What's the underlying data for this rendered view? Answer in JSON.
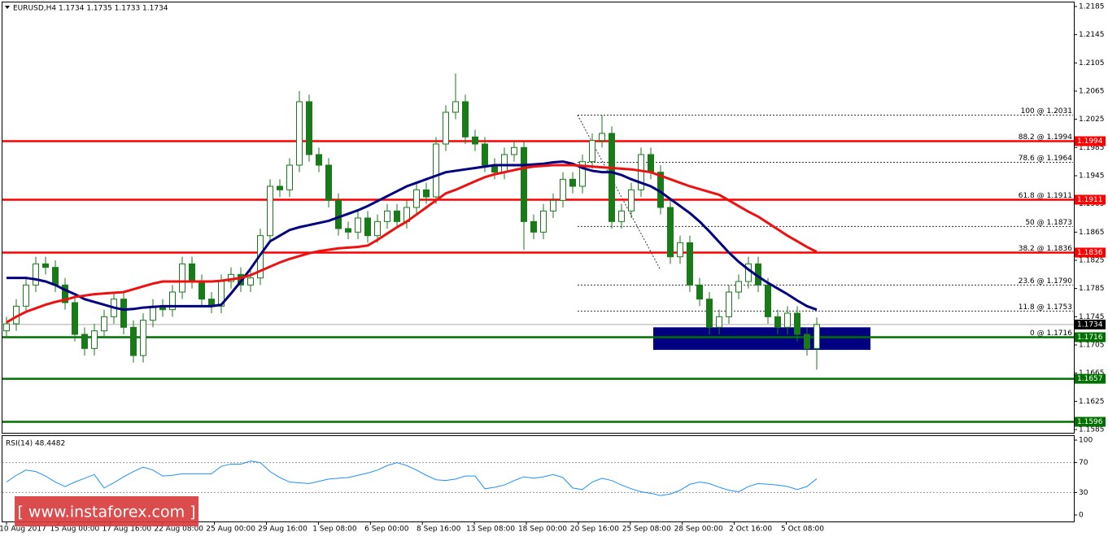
{
  "chart_data": {
    "type": "candlestick",
    "header": "EURUSD,H4  1.1734 1.1735 1.1733 1.1734",
    "watermark": "[ www.instaforex.com ]",
    "ylim": [
      1.1585,
      1.2185
    ],
    "yticks": [
      1.2185,
      1.2145,
      1.2105,
      1.2065,
      1.2025,
      1.1985,
      1.1945,
      1.1905,
      1.1865,
      1.1825,
      1.1785,
      1.1745,
      1.1705,
      1.1665,
      1.1625,
      1.1585
    ],
    "x_labels": [
      "10 Aug 2017",
      "15 Aug 00:00",
      "17 Aug 16:00",
      "22 Aug 08:00",
      "25 Aug 00:00",
      "29 Aug 16:00",
      "1 Sep 08:00",
      "6 Sep 00:00",
      "8 Sep 16:00",
      "13 Sep 08:00",
      "18 Sep 00:00",
      "20 Sep 16:00",
      "25 Sep 08:00",
      "28 Sep 00:00",
      "2 Oct 16:00",
      "5 Oct 08:00"
    ],
    "bull_color": "#ffffff",
    "bear_color": "#1a7a1a",
    "wick_color": "#1a7a1a",
    "candles": {
      "open": [
        1.1725,
        1.1735,
        1.176,
        1.179,
        1.182,
        1.1815,
        1.179,
        1.1765,
        1.172,
        1.17,
        1.1725,
        1.1745,
        1.177,
        1.173,
        1.169,
        1.174,
        1.176,
        1.1755,
        1.178,
        1.182,
        1.1795,
        1.177,
        1.176,
        1.1795,
        1.1805,
        1.179,
        1.18,
        1.186,
        1.193,
        1.1925,
        1.196,
        1.205,
        1.1975,
        1.196,
        1.191,
        1.187,
        1.1865,
        1.1885,
        1.186,
        1.188,
        1.1895,
        1.188,
        1.19,
        1.1925,
        1.1915,
        1.199,
        1.2035,
        1.205,
        1.2,
        1.199,
        1.196,
        1.195,
        1.1975,
        1.1985,
        1.188,
        1.1865,
        1.1895,
        1.191,
        1.194,
        1.193,
        1.1965,
        1.1995,
        1.2005,
        1.188,
        1.1895,
        1.1925,
        1.1975,
        1.195,
        1.19,
        1.183,
        1.185,
        1.179,
        1.177,
        1.173,
        1.1745,
        1.178,
        1.1795,
        1.182,
        1.179,
        1.1745,
        1.173,
        1.175,
        1.172,
        1.17
      ],
      "high": [
        1.1745,
        1.177,
        1.18,
        1.183,
        1.183,
        1.1825,
        1.18,
        1.1775,
        1.173,
        1.1735,
        1.1755,
        1.178,
        1.178,
        1.174,
        1.175,
        1.177,
        1.177,
        1.179,
        1.183,
        1.183,
        1.1805,
        1.178,
        1.1805,
        1.1815,
        1.1815,
        1.181,
        1.187,
        1.194,
        1.194,
        1.197,
        1.2065,
        1.206,
        1.1985,
        1.197,
        1.192,
        1.188,
        1.1895,
        1.1895,
        1.189,
        1.1905,
        1.1905,
        1.191,
        1.1935,
        1.1935,
        1.2,
        1.2045,
        1.209,
        1.206,
        1.201,
        1.2,
        1.197,
        1.1985,
        1.1995,
        1.1995,
        1.189,
        1.1905,
        1.192,
        1.195,
        1.195,
        1.1975,
        1.2005,
        1.2031,
        1.2015,
        1.1905,
        1.1935,
        1.1985,
        1.1985,
        1.196,
        1.191,
        1.186,
        1.186,
        1.18,
        1.178,
        1.1755,
        1.179,
        1.1805,
        1.183,
        1.183,
        1.18,
        1.1755,
        1.176,
        1.176,
        1.173,
        1.1744
      ],
      "low": [
        1.1715,
        1.1725,
        1.175,
        1.178,
        1.1805,
        1.178,
        1.1755,
        1.171,
        1.169,
        1.169,
        1.1715,
        1.1735,
        1.172,
        1.168,
        1.168,
        1.173,
        1.1745,
        1.1745,
        1.177,
        1.1785,
        1.176,
        1.175,
        1.175,
        1.1785,
        1.178,
        1.178,
        1.179,
        1.185,
        1.1915,
        1.1915,
        1.195,
        1.1965,
        1.195,
        1.19,
        1.186,
        1.1855,
        1.1855,
        1.185,
        1.185,
        1.187,
        1.187,
        1.187,
        1.189,
        1.1905,
        1.1905,
        1.198,
        1.2025,
        1.199,
        1.198,
        1.195,
        1.194,
        1.194,
        1.1965,
        1.184,
        1.1855,
        1.1855,
        1.1885,
        1.19,
        1.192,
        1.192,
        1.1955,
        1.1985,
        1.187,
        1.187,
        1.1885,
        1.1915,
        1.194,
        1.189,
        1.182,
        1.182,
        1.178,
        1.176,
        1.172,
        1.172,
        1.1735,
        1.177,
        1.1785,
        1.178,
        1.1735,
        1.172,
        1.172,
        1.171,
        1.169,
        1.167
      ],
      "close": [
        1.1735,
        1.176,
        1.179,
        1.182,
        1.1815,
        1.179,
        1.1765,
        1.172,
        1.17,
        1.1725,
        1.1745,
        1.177,
        1.173,
        1.169,
        1.174,
        1.176,
        1.1755,
        1.178,
        1.182,
        1.1795,
        1.177,
        1.176,
        1.1795,
        1.1805,
        1.179,
        1.18,
        1.186,
        1.193,
        1.1925,
        1.196,
        1.205,
        1.1975,
        1.196,
        1.191,
        1.187,
        1.1865,
        1.1885,
        1.186,
        1.188,
        1.1895,
        1.188,
        1.19,
        1.1925,
        1.1915,
        1.199,
        1.2035,
        1.205,
        1.2,
        1.199,
        1.196,
        1.195,
        1.1975,
        1.1985,
        1.188,
        1.1865,
        1.1895,
        1.191,
        1.194,
        1.193,
        1.1965,
        1.1995,
        1.2005,
        1.188,
        1.1895,
        1.1925,
        1.1975,
        1.195,
        1.19,
        1.183,
        1.185,
        1.179,
        1.177,
        1.173,
        1.1745,
        1.178,
        1.1795,
        1.182,
        1.179,
        1.1745,
        1.173,
        1.175,
        1.172,
        1.17,
        1.1734
      ]
    },
    "series": [
      {
        "color": "#000080",
        "values": [
          1.18,
          1.18,
          1.18,
          1.1798,
          1.1795,
          1.179,
          1.1783,
          1.1777,
          1.177,
          1.1766,
          1.1762,
          1.1758,
          1.1755,
          1.1756,
          1.1758,
          1.1759,
          1.176,
          1.176,
          1.176,
          1.176,
          1.176,
          1.176,
          1.1762,
          1.1778,
          1.1795,
          1.1813,
          1.1833,
          1.1852,
          1.186,
          1.1868,
          1.1872,
          1.1875,
          1.1878,
          1.1881,
          1.1886,
          1.1891,
          1.1896,
          1.1902,
          1.1909,
          1.1916,
          1.1923,
          1.193,
          1.1935,
          1.194,
          1.1945,
          1.195,
          1.1952,
          1.1954,
          1.1956,
          1.1958,
          1.196,
          1.196,
          1.196,
          1.196,
          1.1961,
          1.1962,
          1.1964,
          1.1965,
          1.1962,
          1.1956,
          1.1952,
          1.195,
          1.195,
          1.1946,
          1.194,
          1.1935,
          1.193,
          1.1922,
          1.1912,
          1.1902,
          1.1892,
          1.188,
          1.1866,
          1.1851,
          1.1836,
          1.1823,
          1.1812,
          1.1802,
          1.1793,
          1.1785,
          1.1777,
          1.1768,
          1.176,
          1.1755
        ]
      },
      {
        "color": "#ee1111",
        "values": [
          1.1737,
          1.1745,
          1.1752,
          1.1757,
          1.1762,
          1.1766,
          1.1769,
          1.1773,
          1.1775,
          1.1777,
          1.1778,
          1.1779,
          1.178,
          1.1784,
          1.1788,
          1.1792,
          1.1795,
          1.1795,
          1.1795,
          1.1795,
          1.1795,
          1.1795,
          1.1796,
          1.1798,
          1.18,
          1.1804,
          1.181,
          1.1816,
          1.1822,
          1.1827,
          1.1831,
          1.1835,
          1.1838,
          1.184,
          1.1842,
          1.1843,
          1.1844,
          1.1846,
          1.1854,
          1.1863,
          1.1872,
          1.188,
          1.189,
          1.19,
          1.191,
          1.192,
          1.1925,
          1.1931,
          1.1937,
          1.1943,
          1.1947,
          1.195,
          1.1953,
          1.1956,
          1.1958,
          1.1959,
          1.196,
          1.196,
          1.196,
          1.1959,
          1.1958,
          1.1957,
          1.1956,
          1.1955,
          1.1954,
          1.1952,
          1.195,
          1.1945,
          1.194,
          1.1935,
          1.193,
          1.1926,
          1.1922,
          1.1918,
          1.191,
          1.1902,
          1.1894,
          1.1887,
          1.1878,
          1.1869,
          1.186,
          1.1852,
          1.1844,
          1.1837
        ]
      }
    ],
    "levels": [
      {
        "value": 1.1994,
        "color": "#ff0000"
      },
      {
        "value": 1.1911,
        "color": "#ff0000"
      },
      {
        "value": 1.1836,
        "color": "#ff0000"
      },
      {
        "value": 1.1716,
        "color": "#007000"
      },
      {
        "value": 1.1657,
        "color": "#007000"
      },
      {
        "value": 1.1596,
        "color": "#007000"
      }
    ],
    "last_price": 1.1734,
    "fib": [
      {
        "label": "100 @ 1.2031",
        "value": 1.2031
      },
      {
        "label": "88.2 @ 1.1994",
        "value": 1.1994
      },
      {
        "label": "78.6 @ 1.1964",
        "value": 1.1964
      },
      {
        "label": "61.8 @ 1.1911",
        "value": 1.1911
      },
      {
        "label": "50 @ 1.1873",
        "value": 1.1873
      },
      {
        "label": "38.2 @ 1.1836",
        "value": 1.1836
      },
      {
        "label": "23.6 @ 1.1790",
        "value": 1.179
      },
      {
        "label": "11.8 @ 1.1753",
        "value": 1.1753
      },
      {
        "label": "0 @ 1.1716",
        "value": 1.1716
      }
    ],
    "zone": [
      1.1698,
      1.173
    ],
    "zone_color": "#000080",
    "rsi": {
      "label": "RSI(14) 48.4482",
      "color": "#1e90ff",
      "ylim": [
        0,
        100
      ],
      "yticks": [
        100,
        70,
        30,
        0
      ],
      "values": [
        44,
        53,
        60,
        58,
        52,
        44,
        38,
        44,
        49,
        54,
        36,
        43,
        51,
        58,
        64,
        60,
        52,
        53,
        55,
        55,
        55,
        55,
        65,
        68,
        68,
        72,
        70,
        58,
        50,
        44,
        43,
        42,
        45,
        48,
        49,
        50,
        53,
        56,
        60,
        66,
        70,
        66,
        60,
        53,
        47,
        46,
        48,
        52,
        52,
        35,
        37,
        40,
        46,
        51,
        49,
        51,
        54,
        50,
        36,
        34,
        44,
        49,
        46,
        40,
        35,
        31,
        29,
        26,
        28,
        33,
        41,
        44,
        42,
        37,
        33,
        31,
        38,
        42,
        41,
        40,
        38,
        34,
        38,
        48.4482
      ]
    }
  }
}
